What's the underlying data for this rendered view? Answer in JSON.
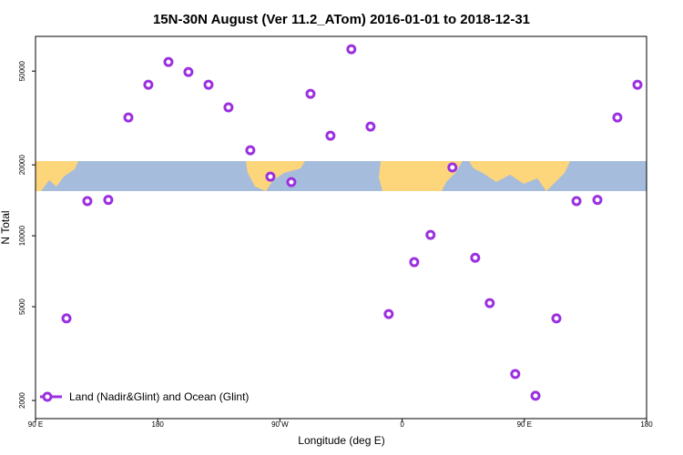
{
  "chart_data": {
    "type": "scatter",
    "title": "15N-30N August (Ver 11.2_ATom)   2016-01-01 to 2018-12-31",
    "x_label": "Longitude (deg E)",
    "y_label": "N Total",
    "log_y": true,
    "xlim": [
      90,
      540
    ],
    "xticks": [
      {
        "value": 90,
        "label": "90 E"
      },
      180,
      {
        "value": 270,
        "label": "90 W"
      },
      {
        "value": 360,
        "label": "0"
      },
      {
        "value": 450,
        "label": "90 E"
      },
      {
        "value": 540,
        "label": "180"
      }
    ],
    "ylim": [
      1675,
      70200
    ],
    "yticks": [
      2000,
      5000,
      10000,
      20000,
      50000
    ],
    "legend_position": "bottom-left",
    "series": [
      {
        "name": "Land (Nadir&Glint) and Ocean (Glint)",
        "color": "#9b30e0",
        "x": [
          112.8,
          128.2,
          143.6,
          158.4,
          173.1,
          187.9,
          202.6,
          217.4,
          232.1,
          248.2,
          263.0,
          278.4,
          292.5,
          307.2,
          322.6,
          336.7,
          350.1,
          368.9,
          380.9,
          397.0,
          413.8,
          424.5,
          443.3,
          458.2,
          473.6,
          488.4,
          503.8,
          518.5,
          533.3
        ],
        "values": [
          4460,
          14030,
          14200,
          31770,
          43750,
          54650,
          49550,
          43750,
          35080,
          23070,
          17830,
          16900,
          40040,
          26600,
          61900,
          29070,
          4655,
          7730,
          10090,
          19500,
          8070,
          5180,
          2590,
          2095,
          4460,
          14030,
          14200,
          31770,
          43750
        ]
      }
    ]
  }
}
